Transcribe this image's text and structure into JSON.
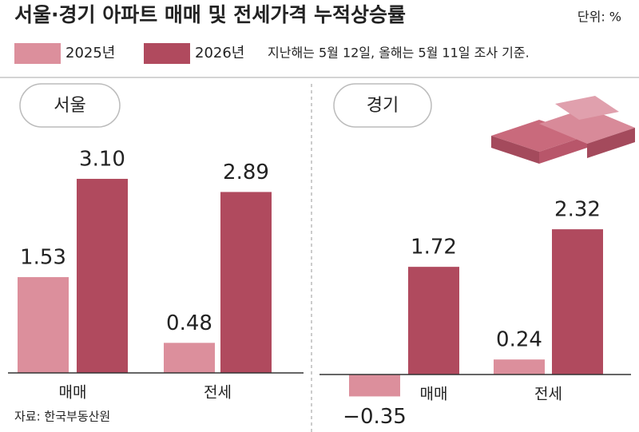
{
  "title": "서울·경기 아파트 매매 및 전세가격 누적상승률",
  "unit": "단위: %",
  "note": "지난해는 5월 12일, 올해는 5월 11일 조사 기준.",
  "source": "자료: 한국부동산원",
  "chart_data": [
    {
      "type": "bar",
      "panel_title": "서울",
      "categories": [
        "매매",
        "전세"
      ],
      "series": [
        {
          "name": "2025년",
          "color": "#dc8f9c",
          "values": [
            1.53,
            0.48
          ],
          "value_labels": [
            "1.53",
            "0.48"
          ]
        },
        {
          "name": "2026년",
          "color": "#b04a5e",
          "values": [
            3.1,
            2.89
          ],
          "value_labels": [
            "3.10",
            "2.89"
          ]
        }
      ]
    },
    {
      "type": "bar",
      "panel_title": "경기",
      "categories": [
        "매매",
        "전세"
      ],
      "series": [
        {
          "name": "2025년",
          "color": "#dc8f9c",
          "values": [
            -0.35,
            0.24
          ],
          "value_labels": [
            "−0.35",
            "0.24"
          ]
        },
        {
          "name": "2026년",
          "color": "#b04a5e",
          "values": [
            1.72,
            2.32
          ],
          "value_labels": [
            "1.72",
            "2.32"
          ]
        }
      ]
    }
  ]
}
